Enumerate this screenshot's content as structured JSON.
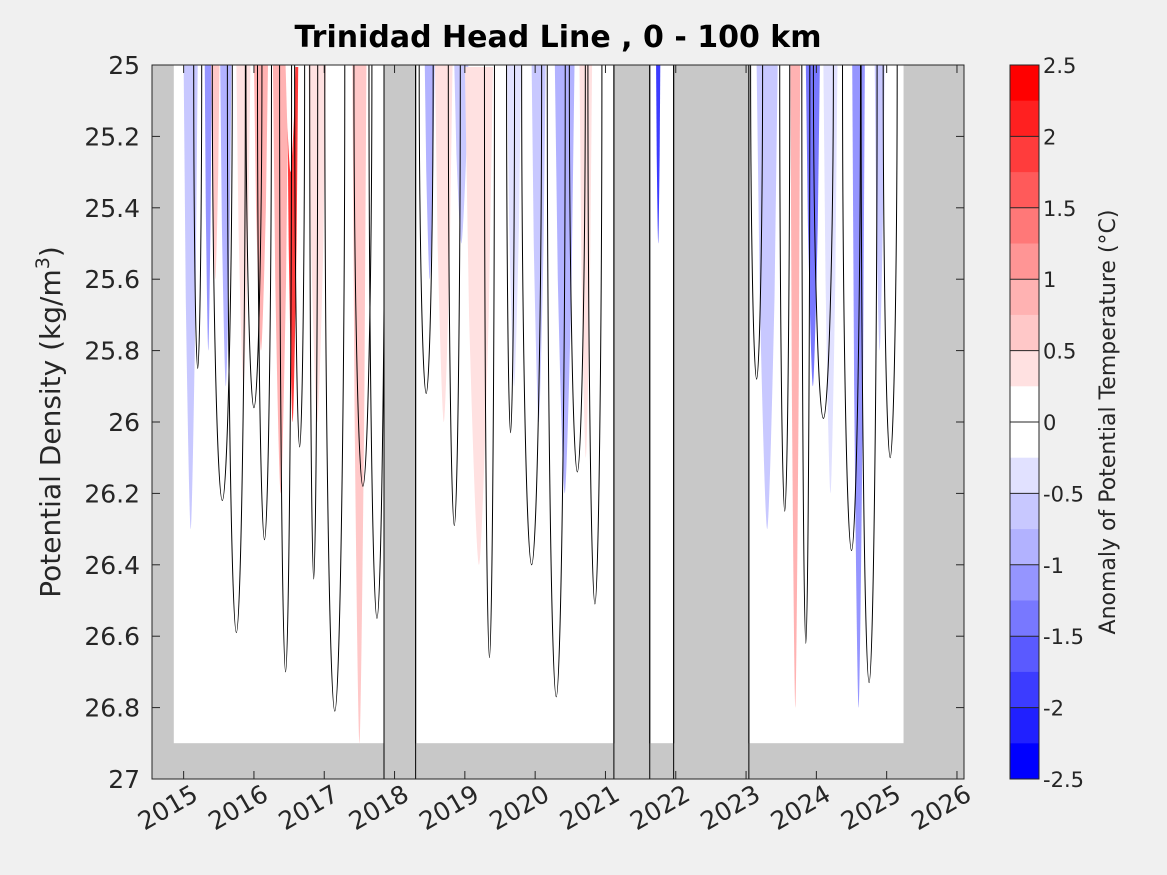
{
  "chart_data": {
    "type": "heatmap",
    "title": "Trinidad Head Line , 0 - 100 km",
    "xlabel": "",
    "ylabel": "Potential Density (kg/m",
    "ylabel_sup": "3",
    "ylabel_close": ")",
    "colorbar_label": "Anomaly of Potential Temperature (°C)",
    "xlim": [
      2014.55,
      2026.1
    ],
    "ylim": [
      25,
      27
    ],
    "y_reversed": true,
    "x_ticks": [
      2015,
      2016,
      2017,
      2018,
      2019,
      2020,
      2021,
      2022,
      2023,
      2024,
      2025,
      2026
    ],
    "x_tick_labels": [
      "2015",
      "2016",
      "2017",
      "2018",
      "2019",
      "2020",
      "2021",
      "2022",
      "2023",
      "2024",
      "2025",
      "2026"
    ],
    "y_ticks": [
      25,
      25.2,
      25.4,
      25.6,
      25.8,
      26,
      26.2,
      26.4,
      26.6,
      26.8,
      27
    ],
    "y_tick_labels": [
      "25",
      "25.2",
      "25.4",
      "25.6",
      "25.8",
      "26",
      "26.2",
      "26.4",
      "26.6",
      "26.8",
      "27"
    ],
    "colorbar_ticks": [
      2.5,
      2,
      1.5,
      1,
      0.5,
      0,
      -0.5,
      -1,
      -1.5,
      -2,
      -2.5
    ],
    "colorbar_tick_labels": [
      "2.5",
      "2",
      "1.5",
      "1",
      "0.5",
      "0",
      "-0.5",
      "-1",
      "-1.5",
      "-2",
      "-2.5"
    ],
    "clim": [
      -2.5,
      2.5
    ],
    "colorbar_levels": [
      {
        "from": 2.25,
        "to": 2.5,
        "color": "#ff0000"
      },
      {
        "from": 2.0,
        "to": 2.25,
        "color": "#ff2020"
      },
      {
        "from": 1.75,
        "to": 2.0,
        "color": "#ff3c3c"
      },
      {
        "from": 1.5,
        "to": 1.75,
        "color": "#ff5a5a"
      },
      {
        "from": 1.25,
        "to": 1.5,
        "color": "#ff7878"
      },
      {
        "from": 1.0,
        "to": 1.25,
        "color": "#ff9595"
      },
      {
        "from": 0.75,
        "to": 1.0,
        "color": "#ffb2b2"
      },
      {
        "from": 0.5,
        "to": 0.75,
        "color": "#ffc8c8"
      },
      {
        "from": 0.25,
        "to": 0.5,
        "color": "#ffe1e1"
      },
      {
        "from": 0.0,
        "to": 0.25,
        "color": "#ffffff"
      },
      {
        "from": -0.25,
        "to": 0.0,
        "color": "#ffffff"
      },
      {
        "from": -0.5,
        "to": -0.25,
        "color": "#e1e1ff"
      },
      {
        "from": -0.75,
        "to": -0.5,
        "color": "#c8c8ff"
      },
      {
        "from": -1.0,
        "to": -0.75,
        "color": "#b2b2ff"
      },
      {
        "from": -1.25,
        "to": -1.0,
        "color": "#9595ff"
      },
      {
        "from": -1.5,
        "to": -1.25,
        "color": "#7878ff"
      },
      {
        "from": -1.75,
        "to": -1.5,
        "color": "#5a5aff"
      },
      {
        "from": -2.0,
        "to": -1.75,
        "color": "#3c3cff"
      },
      {
        "from": -2.25,
        "to": -2.0,
        "color": "#2020ff"
      },
      {
        "from": -2.5,
        "to": -2.25,
        "color": "#0000ff"
      }
    ],
    "no_data_color": "#c8c8c8",
    "data_range_x": [
      2014.86,
      2025.24
    ],
    "data_bottom_density": 26.9,
    "no_data_gaps": [
      {
        "x0": 2017.85,
        "x1": 2018.3
      },
      {
        "x0": 2021.12,
        "x1": 2021.63
      },
      {
        "x0": 2021.97,
        "x1": 2023.04
      }
    ],
    "anomaly_features": [
      {
        "x": 2015.1,
        "width": 0.2,
        "top": 25.0,
        "bottom": 26.3,
        "value": -0.6
      },
      {
        "x": 2015.35,
        "width": 0.1,
        "top": 25.0,
        "bottom": 25.8,
        "value": -1.0
      },
      {
        "x": 2015.45,
        "width": 0.12,
        "top": 25.0,
        "bottom": 25.6,
        "value": 0.6
      },
      {
        "x": 2015.6,
        "width": 0.16,
        "top": 25.0,
        "bottom": 25.9,
        "value": -0.8
      },
      {
        "x": 2015.85,
        "width": 0.2,
        "top": 25.0,
        "bottom": 25.9,
        "value": 0.4
      },
      {
        "x": 2016.1,
        "width": 0.2,
        "top": 25.0,
        "bottom": 25.8,
        "value": 0.8
      },
      {
        "x": 2016.38,
        "width": 0.22,
        "top": 25.0,
        "bottom": 26.2,
        "value": 1.0
      },
      {
        "x": 2016.55,
        "width": 0.16,
        "top": 25.3,
        "bottom": 26.0,
        "value": 1.8
      },
      {
        "x": 2016.52,
        "width": 0.14,
        "top": 25.0,
        "bottom": 25.3,
        "value": 0.2
      },
      {
        "x": 2016.9,
        "width": 0.25,
        "top": 25.0,
        "bottom": 26.0,
        "value": 0.4
      },
      {
        "x": 2017.5,
        "width": 0.2,
        "top": 25.0,
        "bottom": 26.9,
        "value": 0.6
      },
      {
        "x": 2018.5,
        "width": 0.14,
        "top": 25.0,
        "bottom": 25.6,
        "value": -0.8
      },
      {
        "x": 2018.7,
        "width": 0.25,
        "top": 25.0,
        "bottom": 26.0,
        "value": 0.4
      },
      {
        "x": 2018.95,
        "width": 0.2,
        "top": 25.0,
        "bottom": 25.5,
        "value": -0.5
      },
      {
        "x": 2019.2,
        "width": 0.4,
        "top": 25.2,
        "bottom": 26.4,
        "value": 0.4
      },
      {
        "x": 2019.7,
        "width": 0.2,
        "top": 25.0,
        "bottom": 25.9,
        "value": -0.4
      },
      {
        "x": 2020.05,
        "width": 0.2,
        "top": 25.0,
        "bottom": 26.0,
        "value": -0.6
      },
      {
        "x": 2020.42,
        "width": 0.16,
        "top": 25.0,
        "bottom": 25.6,
        "value": -2.2
      },
      {
        "x": 2020.42,
        "width": 0.28,
        "top": 25.0,
        "bottom": 26.2,
        "value": -0.8
      },
      {
        "x": 2020.72,
        "width": 0.18,
        "top": 25.0,
        "bottom": 26.1,
        "value": 0.4
      },
      {
        "x": 2021.75,
        "width": 0.06,
        "top": 25.0,
        "bottom": 25.5,
        "value": -1.8
      },
      {
        "x": 2023.3,
        "width": 0.16,
        "top": 25.0,
        "bottom": 25.8,
        "value": -1.6
      },
      {
        "x": 2023.3,
        "width": 0.3,
        "top": 25.0,
        "bottom": 26.3,
        "value": -0.6
      },
      {
        "x": 2023.7,
        "width": 0.14,
        "top": 25.0,
        "bottom": 26.8,
        "value": 0.9
      },
      {
        "x": 2023.95,
        "width": 0.2,
        "top": 25.0,
        "bottom": 25.9,
        "value": -1.3
      },
      {
        "x": 2024.2,
        "width": 0.2,
        "top": 25.0,
        "bottom": 26.2,
        "value": -0.4
      },
      {
        "x": 2024.6,
        "width": 0.18,
        "top": 25.0,
        "bottom": 26.8,
        "value": -1.1
      },
      {
        "x": 2024.9,
        "width": 0.14,
        "top": 25.0,
        "bottom": 25.8,
        "value": -0.5
      }
    ],
    "zero_contour_x": [
      2015.2,
      2015.55,
      2015.75,
      2016.0,
      2016.15,
      2016.45,
      2016.65,
      2016.85,
      2017.15,
      2017.55,
      2017.75,
      2018.45,
      2018.85,
      2019.35,
      2019.65,
      2019.95,
      2020.3,
      2020.6,
      2020.85,
      2023.15,
      2023.55,
      2023.85,
      2024.1,
      2024.5,
      2024.75,
      2025.05
    ],
    "grid": false,
    "legend": "colorbar right"
  }
}
